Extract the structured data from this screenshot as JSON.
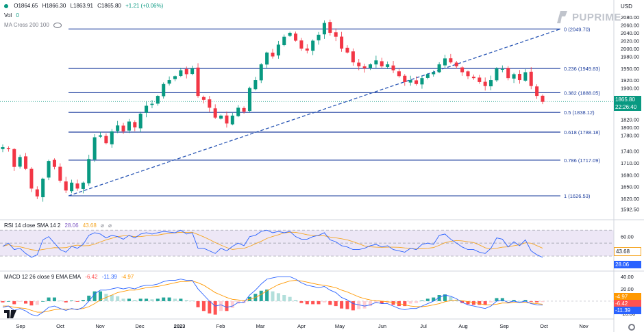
{
  "header": {
    "symbol_dot_color": "#089981",
    "open": "O1864.65",
    "high": "H1866.30",
    "low": "L1863.91",
    "close": "C1865.80",
    "change": "+1.21 (+0.06%)",
    "vol_label": "Vol",
    "vol_value": "0",
    "ma_label": "MA Cross 200 100",
    "currency": "USD"
  },
  "brand": {
    "name": "PUPRIME",
    "color": "#c0c4cc"
  },
  "price_tags": {
    "price": "1865.80",
    "countdown": "22:26:40",
    "rsi": "28.06",
    "rsi_ma": "43.68",
    "macd_signal": "-4.97",
    "macd_line": "-6.42",
    "macd_hist": "-11.39"
  },
  "rsi_header": {
    "label": "RSI 14 close SMA 14 2",
    "v1": "28.06",
    "v2": "43.68"
  },
  "macd_header": {
    "label": "MACD 12 26 close 9 EMA EMA",
    "v1": "-6.42",
    "v2": "-11.39",
    "v3": "-4.97"
  },
  "chart_data": {
    "type": "candlestick",
    "price_axis": {
      "range": [
        1585,
        2085
      ],
      "ticks": [
        2080.0,
        2060.0,
        2040.0,
        2020.0,
        2000.0,
        1980.0,
        1950.0,
        1920.0,
        1900.0,
        1870.0,
        1820.0,
        1800.0,
        1780.0,
        1740.0,
        1710.0,
        1680.0,
        1650.0,
        1620.0,
        1592.5
      ],
      "tick_labels": [
        "2080.00",
        "2060.00",
        "2040.00",
        "2020.00",
        "2000.00",
        "1980.00",
        "1950.00",
        "1920.00",
        "1900.00",
        "1870.00",
        "1820.00",
        "1800.00",
        "1780.00",
        "1740.00",
        "1710.00",
        "1680.00",
        "1650.00",
        "1620.00",
        "1592.50"
      ]
    },
    "x_labels": [
      "Sep",
      "Oct",
      "Nov",
      "Dec",
      "2023",
      "Feb",
      "Mar",
      "Apr",
      "May",
      "Jun",
      "Jul",
      "Aug",
      "Sep",
      "Oct",
      "Nov"
    ],
    "fibonacci": [
      {
        "ratio": "0",
        "price": 2049.7,
        "label": "0 (2049.70)"
      },
      {
        "ratio": "0.236",
        "price": 1949.83,
        "label": "0.236 (1949.83)"
      },
      {
        "ratio": "0.382",
        "price": 1888.05,
        "label": "0.382 (1888.05)"
      },
      {
        "ratio": "0.5",
        "price": 1838.12,
        "label": "0.5 (1838.12)"
      },
      {
        "ratio": "0.618",
        "price": 1788.18,
        "label": "0.618 (1788.18)"
      },
      {
        "ratio": "0.786",
        "price": 1717.09,
        "label": "0.786 (1717.09)"
      },
      {
        "ratio": "1",
        "price": 1626.53,
        "label": "1 (1626.53)"
      }
    ],
    "trendline": {
      "from_price": 1626.53,
      "to_price": 2049.7,
      "style": "dashed"
    },
    "price_path": [
      1750,
      1745,
      1700,
      1725,
      1695,
      1645,
      1625,
      1670,
      1715,
      1700,
      1665,
      1640,
      1660,
      1645,
      1660,
      1720,
      1775,
      1780,
      1760,
      1790,
      1805,
      1790,
      1815,
      1800,
      1835,
      1855,
      1860,
      1880,
      1910,
      1920,
      1930,
      1945,
      1935,
      1950,
      1880,
      1870,
      1850,
      1825,
      1830,
      1810,
      1830,
      1850,
      1840,
      1900,
      1920,
      1960,
      1990,
      1980,
      2010,
      2030,
      2040,
      2020,
      2000,
      1995,
      2020,
      2035,
      2065,
      2040,
      2030,
      2000,
      1990,
      1965,
      1955,
      1950,
      1960,
      1970,
      1955,
      1960,
      1945,
      1930,
      1915,
      1920,
      1910,
      1925,
      1935,
      1940,
      1960,
      1975,
      1965,
      1955,
      1940,
      1930,
      1925,
      1915,
      1905,
      1920,
      1950,
      1948,
      1925,
      1935,
      1920,
      1940,
      1905,
      1880,
      1865
    ],
    "colors": {
      "up": "#089981",
      "down": "#f23645",
      "fib_line": "#1e3f9e",
      "trend": "#2855b4"
    },
    "rsi": {
      "range": [
        0,
        100
      ],
      "levels": [
        70,
        30
      ],
      "ticks": [
        60.0,
        40.0
      ],
      "tick_labels": [
        "60.00",
        "40.00"
      ],
      "values": [
        45,
        50,
        40,
        42,
        34,
        28,
        32,
        55,
        60,
        50,
        40,
        36,
        45,
        42,
        48,
        62,
        66,
        64,
        58,
        62,
        60,
        56,
        62,
        58,
        64,
        66,
        64,
        66,
        68,
        67,
        66,
        70,
        64,
        66,
        42,
        42,
        38,
        34,
        42,
        38,
        45,
        50,
        46,
        60,
        62,
        68,
        70,
        66,
        68,
        66,
        68,
        60,
        56,
        56,
        60,
        62,
        66,
        55,
        52,
        46,
        44,
        40,
        40,
        42,
        46,
        48,
        44,
        46,
        40,
        38,
        36,
        42,
        40,
        48,
        50,
        48,
        62,
        64,
        56,
        50,
        44,
        40,
        40,
        36,
        34,
        42,
        58,
        56,
        44,
        52,
        46,
        55,
        38,
        32,
        28.06
      ],
      "ma_color": "#f5a623",
      "line_color": "#2962ff",
      "band_color": "#ede7f6"
    },
    "macd": {
      "ticks": [
        40.0,
        20.0,
        0,
        -20.0
      ],
      "tick_labels": [
        "40.00",
        "20.00",
        "0",
        "-20.00"
      ],
      "range": [
        -28,
        48
      ],
      "line_values": [
        -10,
        -8,
        -15,
        -12,
        -16,
        -22,
        -24,
        -18,
        -10,
        -8,
        -12,
        -15,
        -12,
        -14,
        -10,
        0,
        12,
        18,
        18,
        20,
        22,
        20,
        22,
        20,
        24,
        26,
        26,
        28,
        32,
        34,
        34,
        36,
        34,
        34,
        20,
        10,
        0,
        -8,
        -6,
        -10,
        -8,
        -2,
        -2,
        10,
        18,
        28,
        36,
        38,
        40,
        40,
        40,
        36,
        30,
        26,
        24,
        22,
        24,
        18,
        14,
        6,
        2,
        -4,
        -6,
        -8,
        -6,
        -2,
        -4,
        -4,
        -8,
        -12,
        -14,
        -12,
        -12,
        -8,
        -4,
        0,
        6,
        10,
        8,
        4,
        -2,
        -6,
        -8,
        -10,
        -12,
        -8,
        0,
        2,
        -2,
        0,
        -2,
        0,
        -4,
        -6,
        -6.42
      ],
      "signal_values": [
        -8,
        -8,
        -10,
        -11,
        -12,
        -15,
        -18,
        -18,
        -16,
        -14,
        -13,
        -13,
        -13,
        -13,
        -12,
        -9,
        -4,
        2,
        6,
        10,
        14,
        16,
        18,
        18,
        20,
        22,
        23,
        24,
        26,
        28,
        30,
        32,
        32,
        33,
        30,
        26,
        20,
        14,
        10,
        6,
        3,
        2,
        1,
        3,
        6,
        11,
        17,
        22,
        27,
        30,
        33,
        34,
        33,
        31,
        29,
        27,
        26,
        24,
        22,
        18,
        15,
        11,
        7,
        4,
        2,
        1,
        0,
        -1,
        -2,
        -4,
        -6,
        -8,
        -9,
        -9,
        -8,
        -6,
        -4,
        -1,
        1,
        2,
        1,
        -1,
        -2,
        -4,
        -6,
        -6,
        -5,
        -3,
        -3,
        -2,
        -2,
        -2,
        -3,
        -4,
        -4.97
      ],
      "hist_up_color": "#26a69a",
      "hist_up_light": "#b2dfdb",
      "hist_down_color": "#ff5252",
      "hist_down_light": "#ffcdd2",
      "line_color": "#2962ff",
      "signal_color": "#ff9800"
    }
  }
}
